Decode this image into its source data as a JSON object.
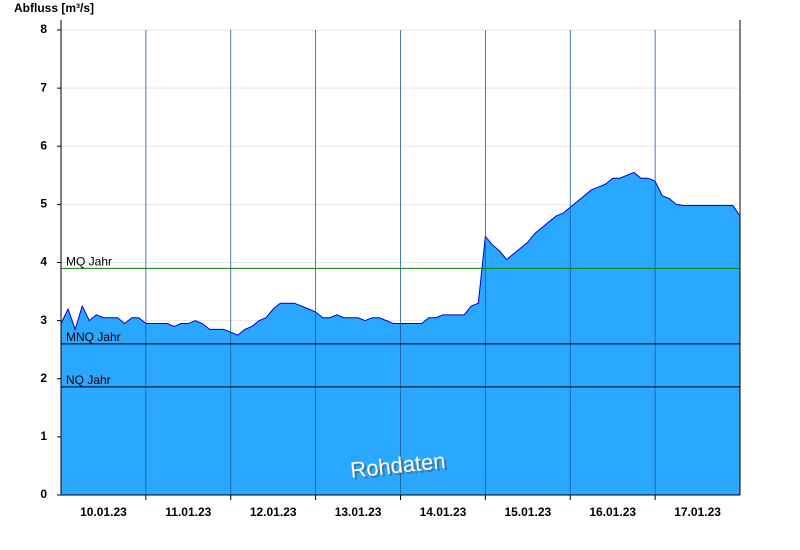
{
  "chart_data": {
    "type": "area",
    "y_label": "Abfluss [m³/s]",
    "annotation": "Rohdaten",
    "x": [
      0,
      2,
      4,
      6,
      8,
      10,
      12,
      14,
      16,
      18,
      20,
      22,
      24,
      26,
      28,
      30,
      32,
      34,
      36,
      38,
      40,
      42,
      44,
      46,
      48,
      50,
      52,
      54,
      56,
      58,
      60,
      62,
      64,
      66,
      68,
      70,
      72,
      74,
      76,
      78,
      80,
      82,
      84,
      86,
      88,
      90,
      92,
      94,
      96,
      98,
      100,
      102,
      104,
      106,
      108,
      110,
      112,
      114,
      116,
      118,
      120,
      122,
      124,
      126,
      128,
      130,
      132,
      134,
      136,
      138,
      140,
      142,
      144,
      146,
      148,
      150,
      152,
      154,
      156,
      158,
      160,
      162,
      164,
      166,
      168,
      170,
      172,
      174,
      176,
      178,
      180,
      182,
      184,
      186,
      188,
      190,
      192
    ],
    "series": [
      {
        "color": "#2aa7ff",
        "line_color": "#0000cc",
        "values": [
          2.95,
          3.2,
          2.85,
          3.25,
          3.0,
          3.1,
          3.05,
          3.05,
          3.05,
          2.95,
          3.05,
          3.05,
          2.95,
          2.95,
          2.95,
          2.95,
          2.9,
          2.95,
          2.95,
          3.0,
          2.95,
          2.85,
          2.85,
          2.85,
          2.8,
          2.75,
          2.85,
          2.9,
          3.0,
          3.05,
          3.2,
          3.3,
          3.3,
          3.3,
          3.25,
          3.2,
          3.15,
          3.05,
          3.05,
          3.1,
          3.05,
          3.05,
          3.05,
          3.0,
          3.05,
          3.05,
          3.0,
          2.95,
          2.95,
          2.95,
          2.95,
          2.95,
          3.05,
          3.05,
          3.1,
          3.1,
          3.1,
          3.1,
          3.25,
          3.3,
          4.45,
          4.3,
          4.2,
          4.05,
          4.15,
          4.25,
          4.35,
          4.5,
          4.6,
          4.7,
          4.8,
          4.85,
          4.95,
          5.05,
          5.15,
          5.25,
          5.3,
          5.35,
          5.45,
          5.45,
          5.5,
          5.55,
          5.45,
          5.45,
          5.4,
          5.15,
          5.1,
          5.0,
          4.98,
          4.98,
          4.98,
          4.98,
          4.98,
          4.98,
          4.98,
          4.98,
          4.8
        ]
      }
    ],
    "xlim": [
      0,
      192
    ],
    "xticks": [
      {
        "value": 12,
        "label": "10.01.23"
      },
      {
        "value": 36,
        "label": "11.01.23"
      },
      {
        "value": 60,
        "label": "12.01.23"
      },
      {
        "value": 84,
        "label": "13.01.23"
      },
      {
        "value": 108,
        "label": "14.01.23"
      },
      {
        "value": 132,
        "label": "15.01.23"
      },
      {
        "value": 156,
        "label": "16.01.23"
      },
      {
        "value": 180,
        "label": "17.01.23"
      }
    ],
    "xgrid": [
      24,
      48,
      72,
      96,
      120,
      144,
      168
    ],
    "ylim": [
      0,
      8
    ],
    "yticks": [
      0,
      1,
      2,
      3,
      4,
      5,
      6,
      7,
      8
    ],
    "grid": true,
    "reference_lines": [
      {
        "label": "MQ Jahr",
        "value": 3.9,
        "color": "#008000"
      },
      {
        "label": "MNQ Jahr",
        "value": 2.6,
        "color": "#000000"
      },
      {
        "label": "NQ Jahr",
        "value": 1.86,
        "color": "#000000"
      }
    ]
  }
}
